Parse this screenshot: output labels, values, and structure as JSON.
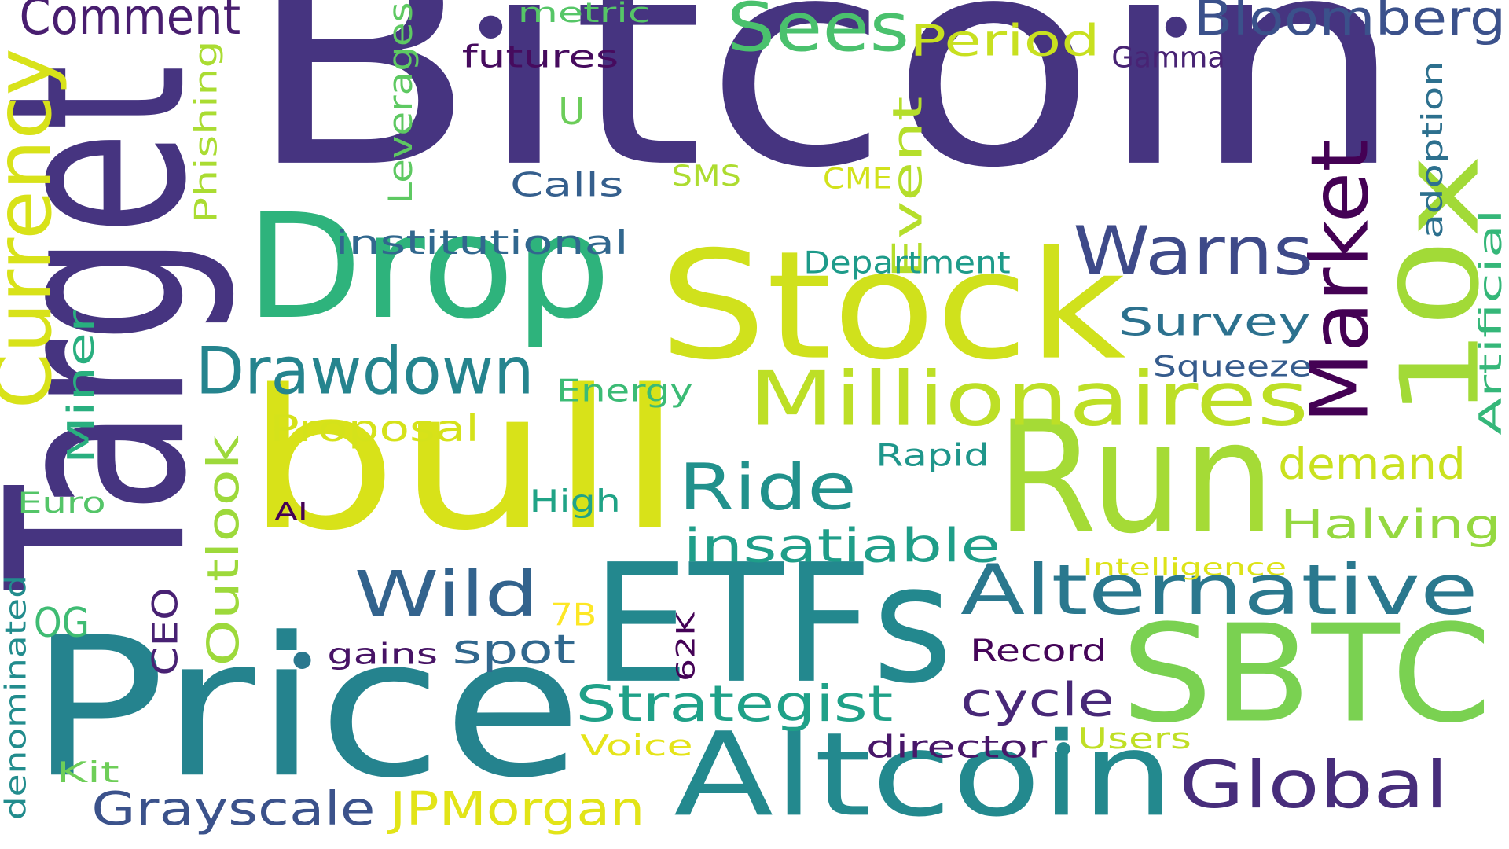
{
  "word_cloud": {
    "words": [
      {
        "text": "Bitcoin",
        "color": "#463480"
      },
      {
        "text": "Target",
        "color": "#463480"
      },
      {
        "text": "Drop",
        "color": "#2eb37c"
      },
      {
        "text": "Stock",
        "color": "#d0e11c"
      },
      {
        "text": "bull",
        "color": "#d8e219"
      },
      {
        "text": "Run",
        "color": "#a5db36"
      },
      {
        "text": "ETFs",
        "color": "#23888e"
      },
      {
        "text": "Price",
        "color": "#25838e"
      },
      {
        "text": "SBTC",
        "color": "#7ad151"
      },
      {
        "text": "Altcoin",
        "color": "#23898e"
      },
      {
        "text": "Currency",
        "color": "#d8e219"
      },
      {
        "text": "10x",
        "color": "#a2da37"
      },
      {
        "text": "Market",
        "color": "#440154"
      },
      {
        "text": "Millionaires",
        "color": "#bddf26"
      },
      {
        "text": "Warns",
        "color": "#3e4a89"
      },
      {
        "text": "Drawdown",
        "color": "#25848e"
      },
      {
        "text": "Alternative",
        "color": "#2a788e"
      },
      {
        "text": "Global",
        "color": "#472d7b"
      },
      {
        "text": "Sees",
        "color": "#4ac16d"
      },
      {
        "text": "Comment",
        "color": "#481d6f"
      },
      {
        "text": "Bloomberg",
        "color": "#3b518b"
      },
      {
        "text": "Wild",
        "color": "#33638d"
      },
      {
        "text": "Ride",
        "color": "#21918c"
      },
      {
        "text": "Strategist",
        "color": "#1fa188"
      },
      {
        "text": "insatiable",
        "color": "#1f9e89"
      },
      {
        "text": "Period",
        "color": "#c8e020"
      },
      {
        "text": "Grayscale",
        "color": "#3b528b"
      },
      {
        "text": "JPMorgan",
        "color": "#e2e418"
      },
      {
        "text": "cycle",
        "color": "#482878"
      },
      {
        "text": "demand",
        "color": "#cae11f"
      },
      {
        "text": "Halving",
        "color": "#95d840"
      },
      {
        "text": "Survey",
        "color": "#2c718e"
      },
      {
        "text": "Outlook",
        "color": "#9dd93b"
      },
      {
        "text": "Proposal",
        "color": "#d5e21a"
      },
      {
        "text": "spot",
        "color": "#31688e"
      },
      {
        "text": "Event",
        "color": "#b5de2b"
      },
      {
        "text": "Miner",
        "color": "#29af7f"
      },
      {
        "text": "Leverages",
        "color": "#5ec962"
      },
      {
        "text": "Phishing",
        "color": "#aadc32"
      },
      {
        "text": "Artificial",
        "color": "#35b779"
      },
      {
        "text": "adoption",
        "color": "#2d708e"
      },
      {
        "text": "OG",
        "color": "#3fbc73"
      },
      {
        "text": "CEO",
        "color": "#482173"
      },
      {
        "text": "denominated",
        "color": "#228c8d"
      },
      {
        "text": "institutional",
        "color": "#31678e"
      },
      {
        "text": "Department",
        "color": "#1e9b8a"
      },
      {
        "text": "Squeeze",
        "color": "#365c8d"
      },
      {
        "text": "Energy",
        "color": "#3bbb75"
      },
      {
        "text": "Calls",
        "color": "#355f8d"
      },
      {
        "text": "Rapid",
        "color": "#1f968b"
      },
      {
        "text": "High",
        "color": "#20a386"
      },
      {
        "text": "Record",
        "color": "#450559"
      },
      {
        "text": "gains",
        "color": "#471365"
      },
      {
        "text": "director",
        "color": "#481769"
      },
      {
        "text": "futures",
        "color": "#460b5e"
      },
      {
        "text": "Gamma",
        "color": "#482374"
      },
      {
        "text": "Users",
        "color": "#c0df25"
      },
      {
        "text": "Voice",
        "color": "#e5e419"
      },
      {
        "text": "Kit",
        "color": "#6ece58"
      },
      {
        "text": "Euro",
        "color": "#54c568"
      },
      {
        "text": "metric",
        "color": "#56c667"
      },
      {
        "text": "U",
        "color": "#6ccd5a"
      },
      {
        "text": "SMS",
        "color": "#addc30"
      },
      {
        "text": "CME",
        "color": "#d2e21b"
      },
      {
        "text": "Intelligence",
        "color": "#dde318"
      },
      {
        "text": "7B",
        "color": "#fde725"
      },
      {
        "text": "62K",
        "color": "#440256"
      },
      {
        "text": "AI",
        "color": "#440154"
      }
    ]
  }
}
